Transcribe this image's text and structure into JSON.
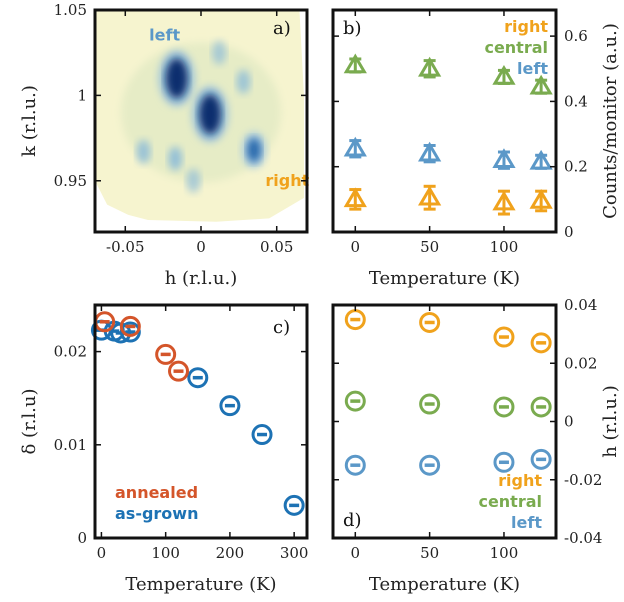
{
  "colors": {
    "right": "#f0a21c",
    "central": "#7aab4f",
    "left": "#5b98c8",
    "annealed": "#d4552a",
    "as_grown": "#1d72b4"
  },
  "chart_data": [
    {
      "panel": "a",
      "label": "a)",
      "type": "heatmap",
      "xlabel": "h (r.l.u.)",
      "ylabel": "k (r.l.u.)",
      "xlim": [
        -0.07,
        0.07
      ],
      "ylim": [
        0.92,
        1.05
      ],
      "xticks": [
        {
          "value": -0.05,
          "label": "-0.05"
        },
        {
          "value": 0,
          "label": "0"
        },
        {
          "value": 0.05,
          "label": "0.05"
        }
      ],
      "yticks": [
        {
          "value": 0.95,
          "label": "0.95"
        },
        {
          "value": 1,
          "label": "1"
        },
        {
          "value": 1.05,
          "label": "1.05"
        }
      ],
      "annotations": [
        {
          "text": "left",
          "h": -0.024,
          "k": 1.032,
          "color": "left"
        },
        {
          "text": "right",
          "h": 0.057,
          "k": 0.947,
          "color": "right"
        }
      ],
      "peaks": [
        {
          "h": -0.016,
          "k": 1.01,
          "intensity": 1.0
        },
        {
          "h": 0.006,
          "k": 0.989,
          "intensity": 1.0
        },
        {
          "h": 0.035,
          "k": 0.968,
          "intensity": 0.7
        },
        {
          "h": -0.038,
          "k": 0.967,
          "intensity": 0.35
        },
        {
          "h": -0.017,
          "k": 0.963,
          "intensity": 0.4
        },
        {
          "h": 0.028,
          "k": 1.008,
          "intensity": 0.3
        },
        {
          "h": 0.012,
          "k": 1.025,
          "intensity": 0.2
        },
        {
          "h": -0.005,
          "k": 0.95,
          "intensity": 0.2
        }
      ]
    },
    {
      "panel": "b",
      "label": "b)",
      "type": "scatter",
      "marker": "triangle",
      "xlabel": "Temperature (K)",
      "ylabel": "Counts/monitor (a.u.)",
      "xlim": [
        -15,
        135
      ],
      "ylim": [
        0,
        0.68
      ],
      "xticks": [
        0,
        50,
        100
      ],
      "yticks": [
        0,
        0.2,
        0.4,
        0.6
      ],
      "ytick_labels": [
        "0",
        "0.2",
        "0.4",
        "0.6"
      ],
      "yaxis_side": "right",
      "legend": [
        "right",
        "central",
        "left"
      ],
      "series": [
        {
          "name": "right",
          "color": "right",
          "x": [
            0,
            50,
            100,
            125
          ],
          "y": [
            0.1,
            0.105,
            0.09,
            0.095
          ],
          "err": [
            0.03,
            0.035,
            0.035,
            0.03
          ]
        },
        {
          "name": "central",
          "color": "central",
          "x": [
            0,
            50,
            100,
            125
          ],
          "y": [
            0.51,
            0.5,
            0.475,
            0.445
          ],
          "err": [
            0.02,
            0.025,
            0.02,
            0.02
          ]
        },
        {
          "name": "left",
          "color": "left",
          "x": [
            0,
            50,
            100,
            125
          ],
          "y": [
            0.255,
            0.24,
            0.22,
            0.215
          ],
          "err": [
            0.025,
            0.025,
            0.025,
            0.02
          ]
        }
      ]
    },
    {
      "panel": "c",
      "label": "c)",
      "type": "scatter",
      "marker": "circle",
      "xlabel": "Temperature (K)",
      "ylabel": "δ (r.l.u)",
      "xlim": [
        -10,
        320
      ],
      "ylim": [
        0,
        0.025
      ],
      "xticks": [
        0,
        100,
        200,
        300
      ],
      "yticks": [
        0,
        0.01,
        0.02
      ],
      "ytick_labels": [
        "0",
        "0.01",
        "0.02"
      ],
      "legend": [
        "annealed",
        "as-grown"
      ],
      "series": [
        {
          "name": "as-grown",
          "color": "as_grown",
          "x": [
            0,
            20,
            30,
            45,
            150,
            200,
            250,
            300
          ],
          "y": [
            0.0223,
            0.0222,
            0.022,
            0.0221,
            0.0172,
            0.0142,
            0.0111,
            0.0035
          ]
        },
        {
          "name": "annealed",
          "color": "annealed",
          "x": [
            5,
            45,
            100,
            120
          ],
          "y": [
            0.0232,
            0.0227,
            0.0197,
            0.0179
          ]
        }
      ]
    },
    {
      "panel": "d",
      "label": "d)",
      "type": "scatter",
      "marker": "circle",
      "xlabel": "Temperature (K)",
      "ylabel": "h (r.l.u.)",
      "xlim": [
        -15,
        135
      ],
      "ylim": [
        -0.04,
        0.04
      ],
      "xticks": [
        0,
        50,
        100
      ],
      "yticks": [
        -0.04,
        -0.02,
        0,
        0.02,
        0.04
      ],
      "ytick_labels": [
        "-0.04",
        "-0.02",
        "0",
        "0.02",
        "0.04"
      ],
      "yaxis_side": "right",
      "legend": [
        "right",
        "central",
        "left"
      ],
      "series": [
        {
          "name": "right",
          "color": "right",
          "x": [
            0,
            50,
            100,
            125
          ],
          "y": [
            0.035,
            0.034,
            0.029,
            0.027
          ]
        },
        {
          "name": "central",
          "color": "central",
          "x": [
            0,
            50,
            100,
            125
          ],
          "y": [
            0.007,
            0.006,
            0.005,
            0.005
          ]
        },
        {
          "name": "left",
          "color": "left",
          "x": [
            0,
            50,
            100,
            125
          ],
          "y": [
            -0.015,
            -0.015,
            -0.014,
            -0.013
          ]
        }
      ]
    }
  ]
}
